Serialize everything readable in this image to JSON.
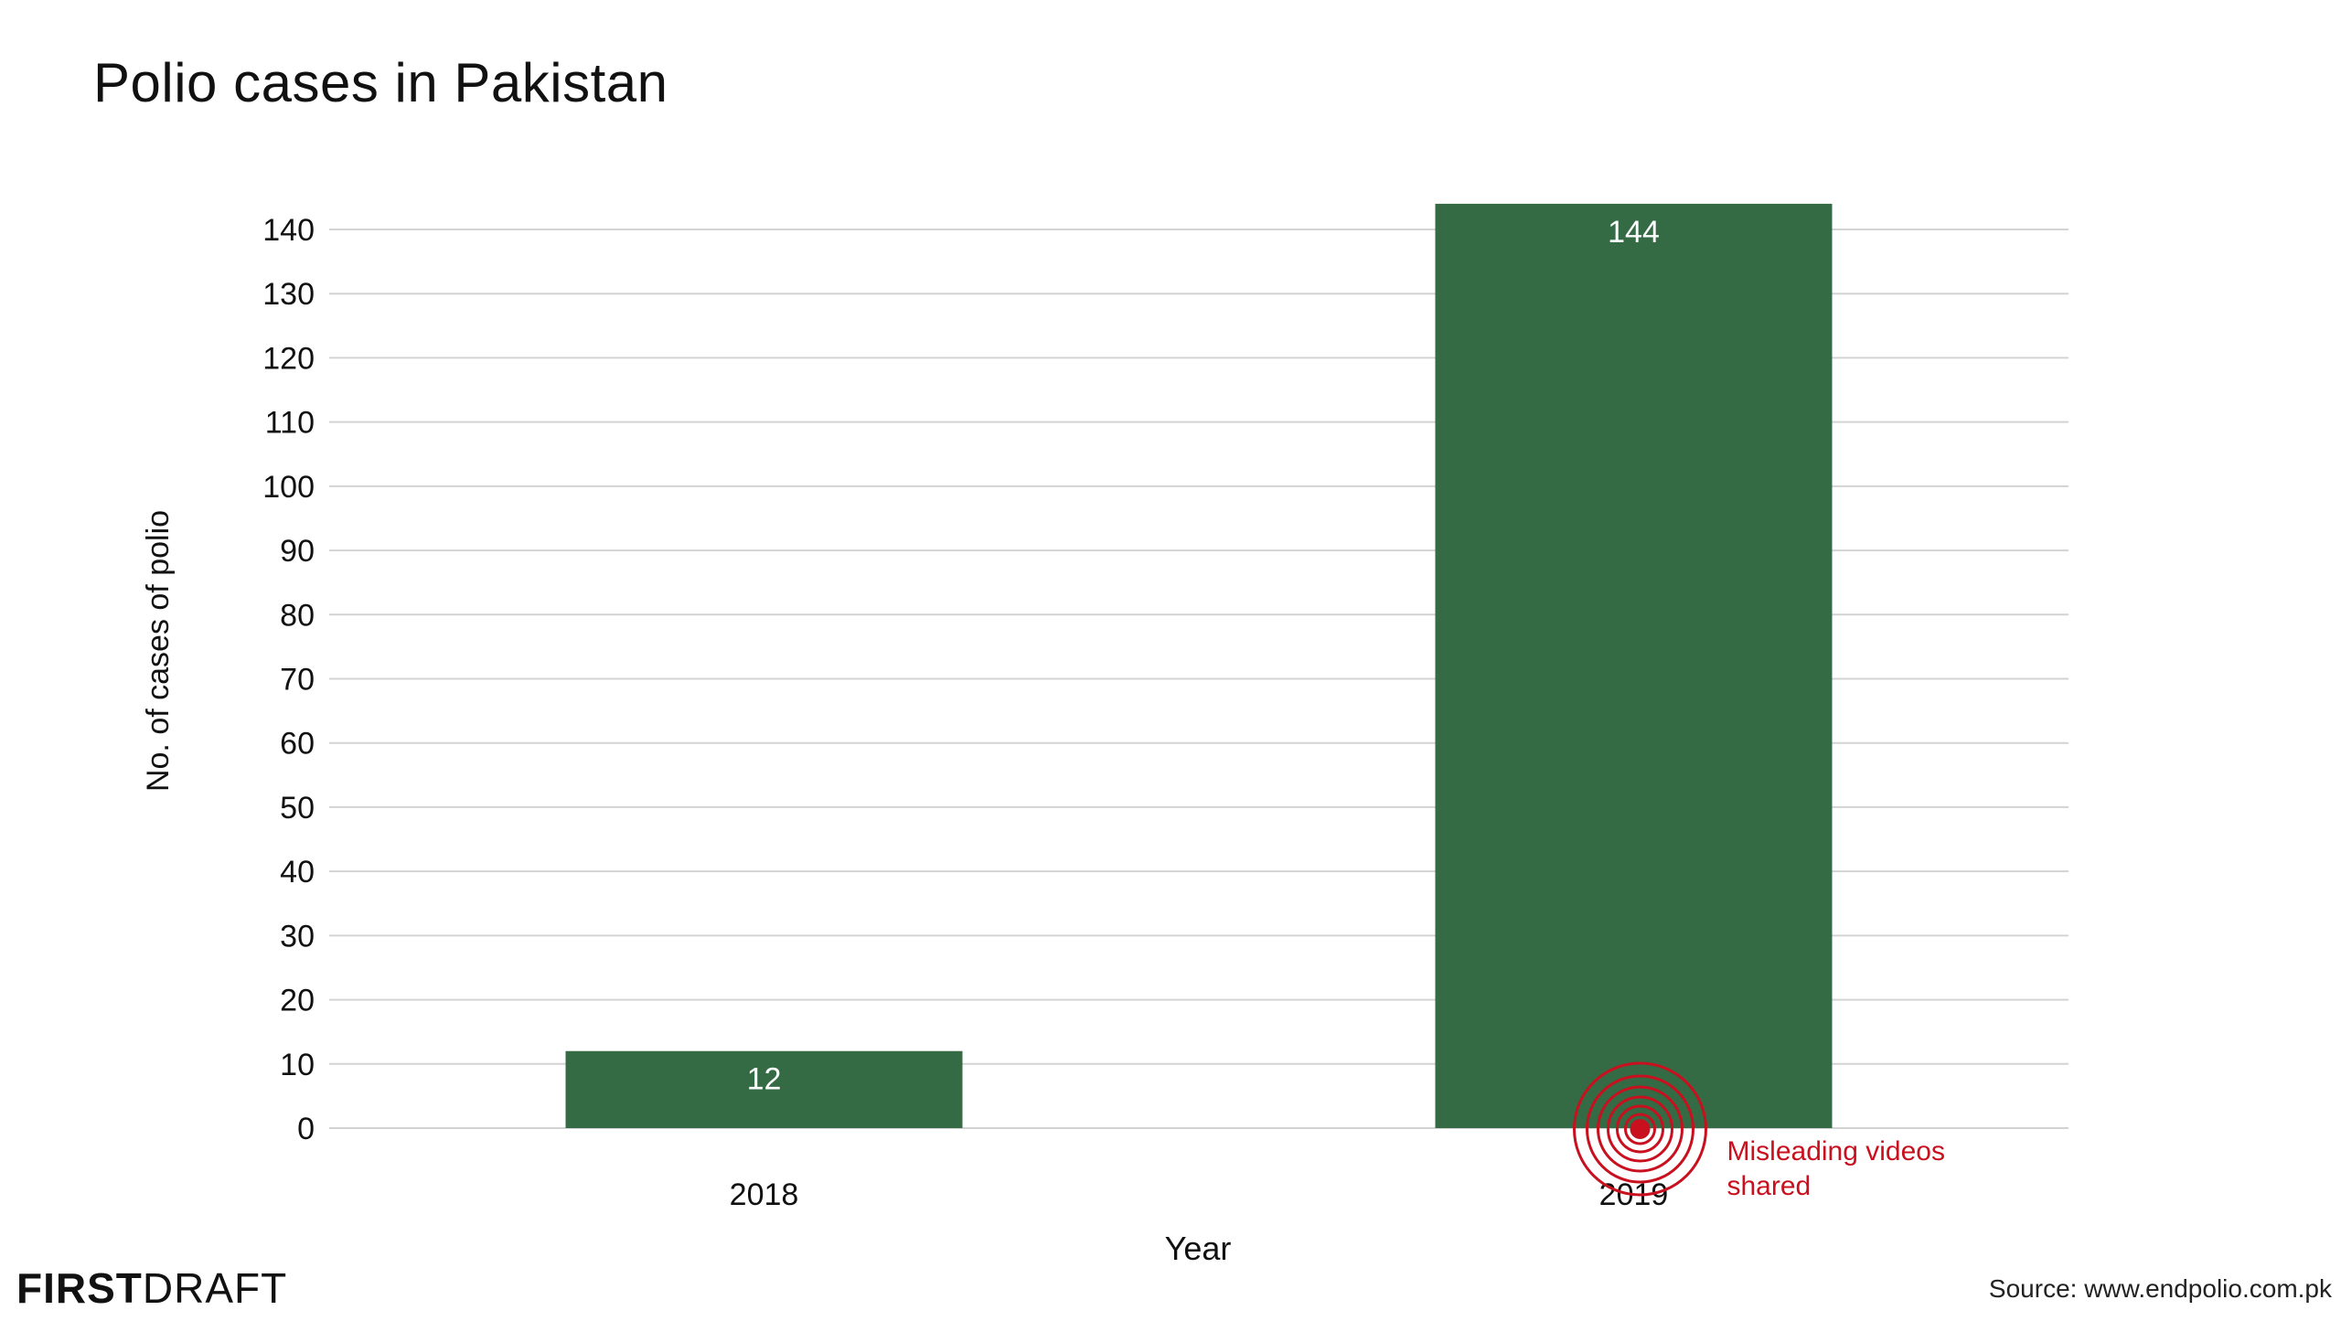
{
  "chart_data": {
    "type": "bar",
    "title": "Polio cases in Pakistan",
    "xlabel": "Year",
    "ylabel": "No. of cases of polio",
    "categories": [
      "2018",
      "2019"
    ],
    "values": [
      12,
      144
    ],
    "data_labels": [
      "12",
      "144"
    ],
    "ylim": [
      0,
      144
    ],
    "yticks": [
      0,
      10,
      20,
      30,
      40,
      50,
      60,
      70,
      80,
      90,
      100,
      110,
      120,
      130,
      140
    ],
    "grid": true,
    "bar_color": "#346b45",
    "annotation": {
      "text_line1": "Misleading videos",
      "text_line2": "shared",
      "category": "2019",
      "value": 0,
      "color": "#c8101e"
    }
  },
  "branding": {
    "logo_bold": "FIRST",
    "logo_light": "DRAFT"
  },
  "source": "Source: www.endpolio.com.pk"
}
